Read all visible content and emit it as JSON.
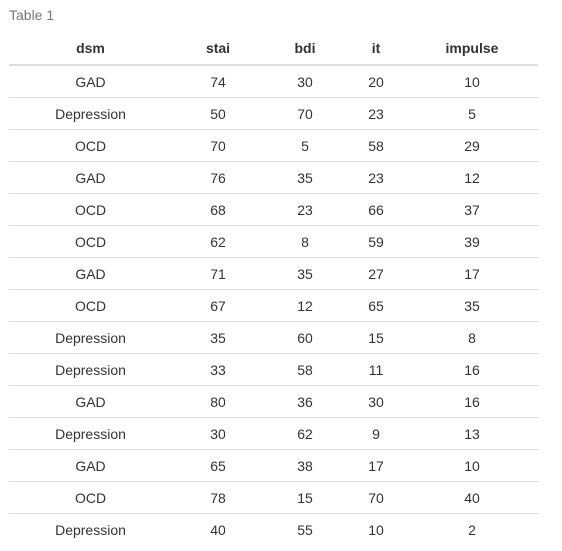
{
  "caption": "Table 1",
  "table": {
    "columns": [
      "dsm",
      "stai",
      "bdi",
      "it",
      "impulse"
    ],
    "rows": [
      [
        "GAD",
        "74",
        "30",
        "20",
        "10"
      ],
      [
        "Depression",
        "50",
        "70",
        "23",
        "5"
      ],
      [
        "OCD",
        "70",
        "5",
        "58",
        "29"
      ],
      [
        "GAD",
        "76",
        "35",
        "23",
        "12"
      ],
      [
        "OCD",
        "68",
        "23",
        "66",
        "37"
      ],
      [
        "OCD",
        "62",
        "8",
        "59",
        "39"
      ],
      [
        "GAD",
        "71",
        "35",
        "27",
        "17"
      ],
      [
        "OCD",
        "67",
        "12",
        "65",
        "35"
      ],
      [
        "Depression",
        "35",
        "60",
        "15",
        "8"
      ],
      [
        "Depression",
        "33",
        "58",
        "11",
        "16"
      ],
      [
        "GAD",
        "80",
        "36",
        "30",
        "16"
      ],
      [
        "Depression",
        "30",
        "62",
        "9",
        "13"
      ],
      [
        "GAD",
        "65",
        "38",
        "17",
        "10"
      ],
      [
        "OCD",
        "78",
        "15",
        "70",
        "40"
      ],
      [
        "Depression",
        "40",
        "55",
        "10",
        "2"
      ]
    ]
  }
}
